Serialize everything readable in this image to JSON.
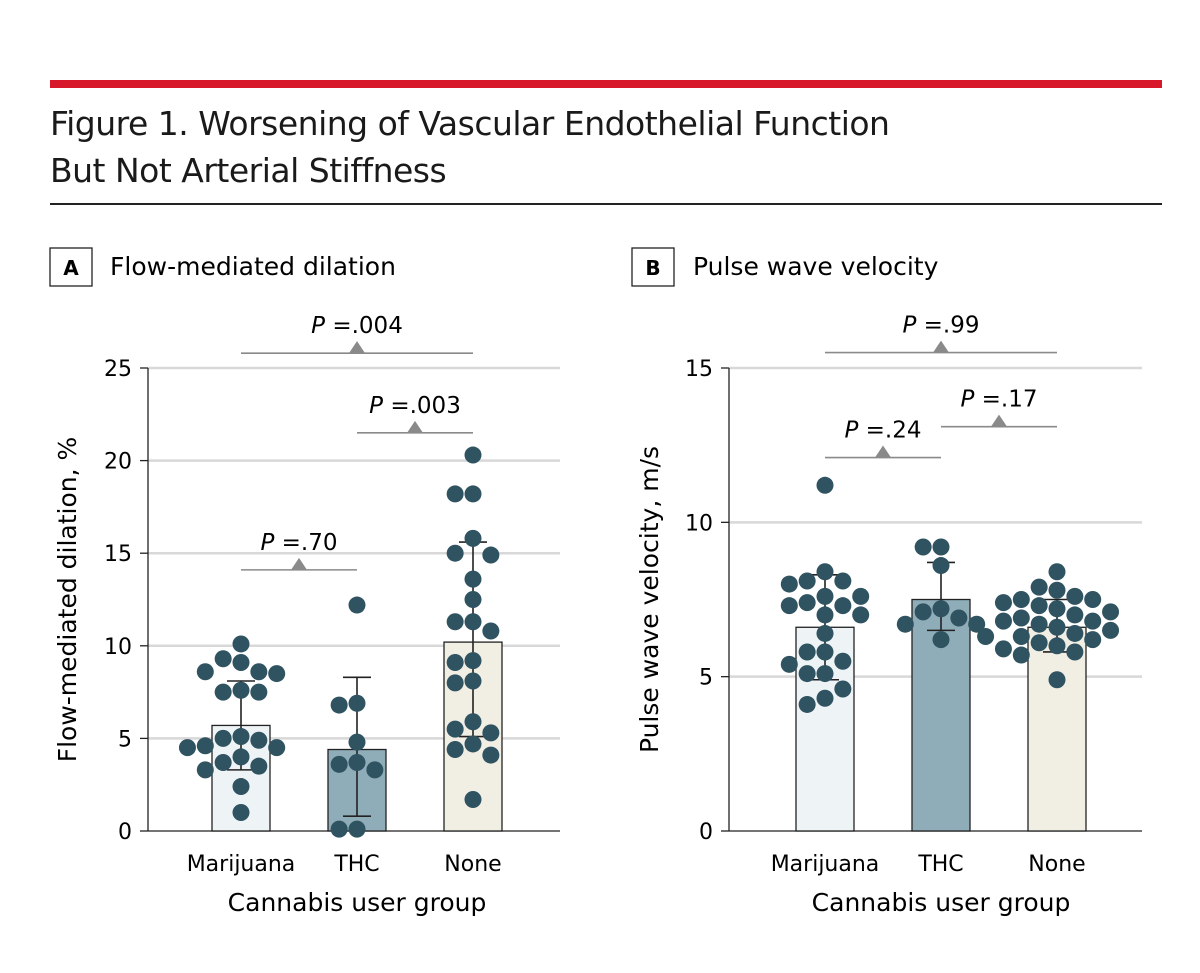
{
  "header": {
    "title_line1": "Figure 1. Worsening of Vascular Endothelial Function",
    "title_line2": "But Not Arterial Stiffness",
    "accent_color": "#d7182a"
  },
  "colors": {
    "dot": "#2f5361",
    "bars": [
      "#eef3f6",
      "#8fadb9",
      "#f1eee4"
    ],
    "grid": "#d8d8d8",
    "significance": "#8a8a8a"
  },
  "chart_data": [
    {
      "panel_letter": "A",
      "panel_title": "Flow-mediated dilation",
      "type": "bar",
      "xlabel": "Cannabis user group",
      "ylabel": "Flow-mediated dilation, %",
      "ylim": [
        0,
        25
      ],
      "yticks": [
        0,
        5,
        10,
        15,
        20,
        25
      ],
      "grid": true,
      "categories": [
        "Marijuana",
        "THC",
        "None"
      ],
      "means": [
        5.7,
        4.4,
        10.2
      ],
      "sd_upper": [
        8.1,
        8.3,
        15.6
      ],
      "sd_lower": [
        3.3,
        0.8,
        5.1
      ],
      "points": [
        [
          10.1,
          9.3,
          9.1,
          8.6,
          8.5,
          8.6,
          7.5,
          7.5,
          7.6,
          5.0,
          4.9,
          4.5,
          4.6,
          4.5,
          5.1,
          3.7,
          4.0,
          3.3,
          3.5,
          2.4,
          1.0
        ],
        [
          12.2,
          6.8,
          6.9,
          4.8,
          3.6,
          3.7,
          3.3,
          0.1,
          0.1
        ],
        [
          20.3,
          18.2,
          18.2,
          15.8,
          15.0,
          14.9,
          13.6,
          12.5,
          11.3,
          11.3,
          10.8,
          9.2,
          9.1,
          8.1,
          8.0,
          5.9,
          5.5,
          5.3,
          4.7,
          4.4,
          4.1,
          1.7
        ]
      ],
      "significance": [
        {
          "label_italic": "P",
          "label_rest": " =.70",
          "from": 0,
          "to": 1,
          "y": 14.1
        },
        {
          "label_italic": "P",
          "label_rest": " =.003",
          "from": 1,
          "to": 2,
          "y": 21.5
        },
        {
          "label_italic": "P",
          "label_rest": " =.004",
          "from": 0,
          "to": 2,
          "y": 25.8
        }
      ]
    },
    {
      "panel_letter": "B",
      "panel_title": "Pulse wave velocity",
      "type": "bar",
      "xlabel": "Cannabis user group",
      "ylabel": "Pulse wave velocity, m/s",
      "ylim": [
        0,
        15
      ],
      "yticks": [
        0,
        5,
        10,
        15
      ],
      "grid": true,
      "categories": [
        "Marijuana",
        "THC",
        "None"
      ],
      "means": [
        6.6,
        7.5,
        6.6
      ],
      "sd_upper": [
        8.3,
        8.7,
        7.5
      ],
      "sd_lower": [
        4.9,
        6.5,
        5.8
      ],
      "points": [
        [
          11.2,
          8.4,
          8.1,
          8.1,
          8.0,
          7.6,
          7.6,
          7.4,
          7.3,
          7.3,
          7.0,
          7.0,
          6.4,
          5.8,
          5.8,
          5.5,
          5.4,
          5.1,
          5.1,
          4.6,
          4.3,
          4.1
        ],
        [
          9.2,
          9.2,
          8.6,
          7.2,
          7.1,
          6.9,
          6.7,
          6.7,
          6.2
        ],
        [
          8.4,
          7.9,
          7.8,
          7.6,
          7.5,
          7.5,
          7.4,
          7.3,
          7.2,
          7.1,
          7.0,
          6.9,
          6.8,
          6.8,
          6.7,
          6.6,
          6.5,
          6.4,
          6.3,
          6.3,
          6.2,
          6.1,
          6.0,
          5.9,
          5.8,
          5.7,
          4.9
        ]
      ],
      "significance": [
        {
          "label_italic": "P",
          "label_rest": " =.24",
          "from": 0,
          "to": 1,
          "y": 12.1
        },
        {
          "label_italic": "P",
          "label_rest": " =.17",
          "from": 1,
          "to": 2,
          "y": 13.1
        },
        {
          "label_italic": "P",
          "label_rest": " =.99",
          "from": 0,
          "to": 2,
          "y": 15.5
        }
      ]
    }
  ]
}
